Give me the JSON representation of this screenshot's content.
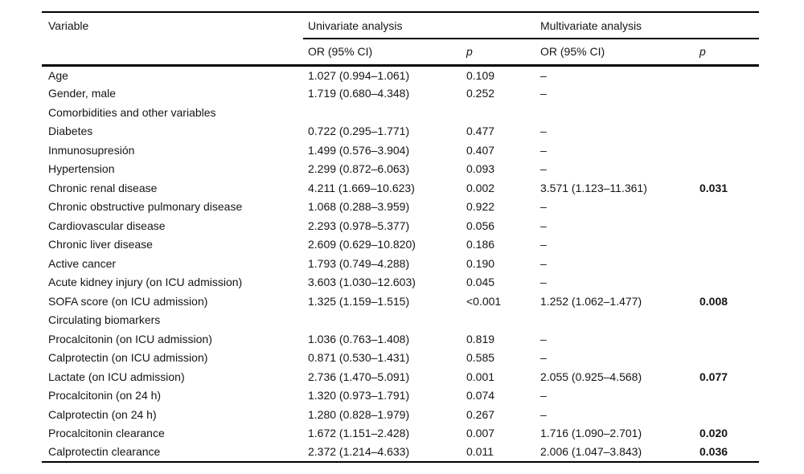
{
  "table": {
    "header": {
      "variable": "Variable",
      "univariate": "Univariate analysis",
      "multivariate": "Multivariate analysis",
      "or_ci": "OR (95% CI)",
      "p": "p"
    },
    "rows": [
      {
        "variable": "Age",
        "uni_or": "1.027 (0.994–1.061)",
        "uni_p": "0.109",
        "multi_or": "–",
        "multi_p": ""
      },
      {
        "variable": "Gender, male",
        "uni_or": "1.719 (0.680–4.348)",
        "uni_p": "0.252",
        "multi_or": "–",
        "multi_p": ""
      },
      {
        "variable": "Comorbidities and other variables",
        "uni_or": "",
        "uni_p": "",
        "multi_or": "",
        "multi_p": ""
      },
      {
        "variable": "Diabetes",
        "uni_or": "0.722 (0.295–1.771)",
        "uni_p": "0.477",
        "multi_or": "–",
        "multi_p": ""
      },
      {
        "variable": "Inmunosupresión",
        "uni_or": "1.499 (0.576–3.904)",
        "uni_p": "0.407",
        "multi_or": "–",
        "multi_p": ""
      },
      {
        "variable": "Hypertension",
        "uni_or": "2.299 (0.872–6.063)",
        "uni_p": "0.093",
        "multi_or": "–",
        "multi_p": ""
      },
      {
        "variable": "Chronic renal disease",
        "uni_or": "4.211 (1.669–10.623)",
        "uni_p": "0.002",
        "multi_or": "3.571 (1.123–11.361)",
        "multi_p": "0.031"
      },
      {
        "variable": "Chronic obstructive pulmonary disease",
        "uni_or": "1.068 (0.288–3.959)",
        "uni_p": "0.922",
        "multi_or": "–",
        "multi_p": ""
      },
      {
        "variable": "Cardiovascular disease",
        "uni_or": "2.293 (0.978–5.377)",
        "uni_p": "0.056",
        "multi_or": "–",
        "multi_p": ""
      },
      {
        "variable": "Chronic liver disease",
        "uni_or": "2.609 (0.629–10.820)",
        "uni_p": "0.186",
        "multi_or": "–",
        "multi_p": ""
      },
      {
        "variable": "Active cancer",
        "uni_or": "1.793 (0.749–4.288)",
        "uni_p": "0.190",
        "multi_or": "–",
        "multi_p": ""
      },
      {
        "variable": "Acute kidney injury (on ICU admission)",
        "uni_or": "3.603 (1.030–12.603)",
        "uni_p": "0.045",
        "multi_or": "–",
        "multi_p": ""
      },
      {
        "variable": "SOFA score (on ICU admission)",
        "uni_or": "1.325 (1.159–1.515)",
        "uni_p": "<0.001",
        "multi_or": "1.252 (1.062–1.477)",
        "multi_p": "0.008"
      },
      {
        "variable": "Circulating biomarkers",
        "uni_or": "",
        "uni_p": "",
        "multi_or": "",
        "multi_p": ""
      },
      {
        "variable": "Procalcitonin (on ICU admission)",
        "uni_or": "1.036 (0.763–1.408)",
        "uni_p": "0.819",
        "multi_or": "–",
        "multi_p": ""
      },
      {
        "variable": "Calprotectin (on ICU admission)",
        "uni_or": "0.871 (0.530–1.431)",
        "uni_p": "0.585",
        "multi_or": "–",
        "multi_p": ""
      },
      {
        "variable": "Lactate (on ICU admission)",
        "uni_or": "2.736 (1.470–5.091)",
        "uni_p": "0.001",
        "multi_or": "2.055 (0.925–4.568)",
        "multi_p": "0.077"
      },
      {
        "variable": "Procalcitonin (on 24 h)",
        "uni_or": "1.320 (0.973–1.791)",
        "uni_p": "0.074",
        "multi_or": "–",
        "multi_p": ""
      },
      {
        "variable": "Calprotectin (on 24 h)",
        "uni_or": "1.280 (0.828–1.979)",
        "uni_p": "0.267",
        "multi_or": "–",
        "multi_p": ""
      },
      {
        "variable": "Procalcitonin clearance",
        "uni_or": "1.672 (1.151–2.428)",
        "uni_p": "0.007",
        "multi_or": "1.716 (1.090–2.701)",
        "multi_p": "0.020"
      },
      {
        "variable": "Calprotectin clearance",
        "uni_or": "2.372 (1.214–4.633)",
        "uni_p": "0.011",
        "multi_or": "2.006 (1.047–3.843)",
        "multi_p": "0.036"
      }
    ]
  }
}
